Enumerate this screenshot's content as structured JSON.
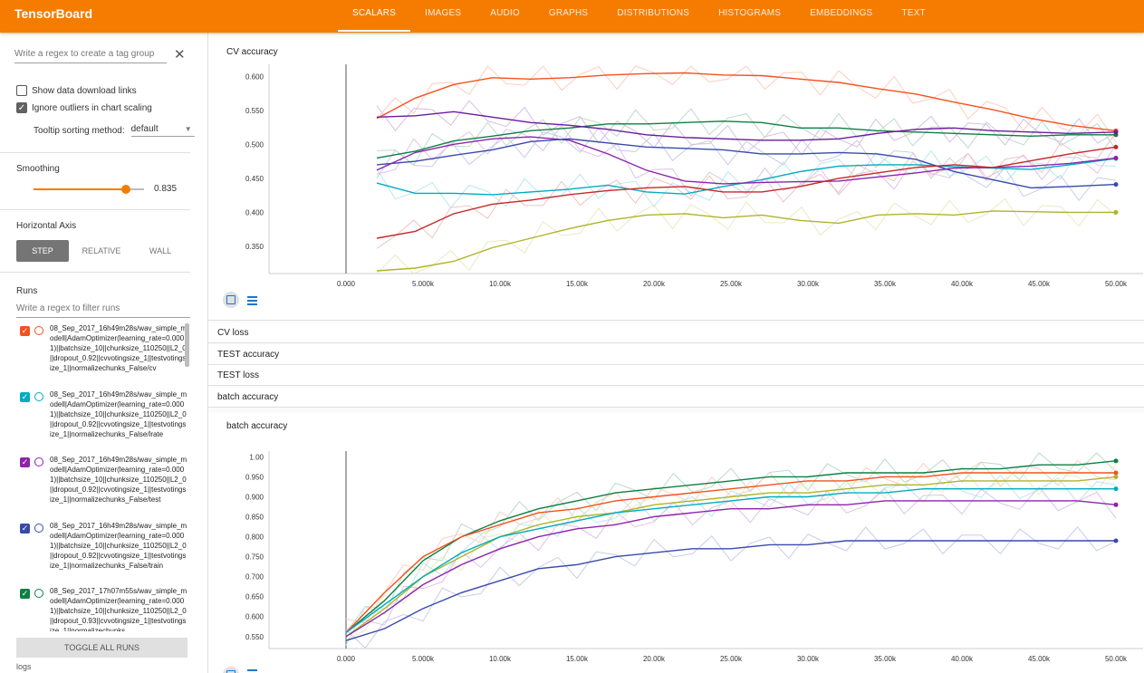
{
  "app": {
    "title": "TensorBoard"
  },
  "tabs": [
    "SCALARS",
    "IMAGES",
    "AUDIO",
    "GRAPHS",
    "DISTRIBUTIONS",
    "HISTOGRAMS",
    "EMBEDDINGS",
    "TEXT"
  ],
  "active_tab": "SCALARS",
  "sidebar": {
    "tag_group_placeholder": "Write a regex to create a tag group",
    "show_download_label": "Show data download links",
    "show_download_checked": false,
    "ignore_outliers_label": "Ignore outliers in chart scaling",
    "ignore_outliers_checked": true,
    "tooltip_label": "Tooltip sorting method:",
    "tooltip_value": "default",
    "smoothing_title": "Smoothing",
    "smoothing_value": "0.835",
    "smoothing_level": 0.835,
    "axis_title": "Horizontal Axis",
    "axis_options": [
      "STEP",
      "RELATIVE",
      "WALL"
    ],
    "axis_active": "STEP",
    "runs_title": "Runs",
    "runs_filter_placeholder": "Write a regex to filter runs",
    "runs": [
      {
        "text": "08_Sep_2017_16h49m28s/wav_simple_modell|AdamOptimizer(learning_rate=0.0001)||batchsize_10||chunksize_110250||L2_0||dropout_0.92||cvvotingsize_1||testvotingsize_1||normalizechunks_False/cv",
        "color": "#f4511e",
        "checked": true
      },
      {
        "text": "08_Sep_2017_16h49m28s/wav_simple_modell|AdamOptimizer(learning_rate=0.0001)||batchsize_10||chunksize_110250||L2_0||dropout_0.92||cvvotingsize_1||testvotingsize_1||normalizechunks_False/lrate",
        "color": "#00acc1",
        "checked": true
      },
      {
        "text": "08_Sep_2017_16h49m28s/wav_simple_modell|AdamOptimizer(learning_rate=0.0001)||batchsize_10||chunksize_110250||L2_0||dropout_0.92||cvvotingsize_1||testvotingsize_1||normalizechunks_False/test",
        "color": "#8e24aa",
        "checked": true
      },
      {
        "text": "08_Sep_2017_16h49m28s/wav_simple_modell|AdamOptimizer(learning_rate=0.0001)||batchsize_10||chunksize_110250||L2_0||dropout_0.92||cvvotingsize_1||testvotingsize_1||normalizechunks_False/train",
        "color": "#3949ab",
        "checked": true
      },
      {
        "text": "08_Sep_2017_17h07m55s/wav_simple_modell|AdamOptimizer(learning_rate=0.0001)||batchsize_10||chunksize_110250||L2_0||dropout_0.93||cvvotingsize_1||testvotingsize_1||normalizechunks",
        "color": "#0b8043",
        "checked": true
      }
    ],
    "toggle_all_label": "TOGGLE ALL RUNS",
    "logs_label": "logs"
  },
  "cards": {
    "cv_accuracy_title": "CV accuracy",
    "collapsed": [
      "CV loss",
      "TEST accuracy",
      "TEST loss",
      "batch accuracy"
    ],
    "batch_accuracy_title": "batch accuracy"
  },
  "icons": {
    "fit_domain": "fit-domain-icon",
    "toggle_log": "lines-icon",
    "close": "close-icon"
  },
  "chart_data": [
    {
      "type": "line",
      "title": "CV accuracy",
      "x_ticks": [
        "0.000",
        "5.000k",
        "10.00k",
        "15.00k",
        "20.00k",
        "25.00k",
        "30.00k",
        "35.00k",
        "40.00k",
        "45.00k",
        "50.00k"
      ],
      "y_ticks": [
        "0.350",
        "0.400",
        "0.450",
        "0.500",
        "0.550",
        "0.600"
      ],
      "xlim": [
        0,
        50000
      ],
      "ylim": [
        0.31,
        0.615
      ],
      "x": [
        2000,
        4500,
        7000,
        9500,
        12000,
        14500,
        17000,
        19500,
        22000,
        24500,
        27000,
        29500,
        32000,
        34500,
        37000,
        39500,
        42000,
        44500,
        47000,
        50000
      ],
      "series": [
        {
          "color": "#f4511e",
          "values": [
            0.538,
            0.568,
            0.588,
            0.598,
            0.596,
            0.598,
            0.602,
            0.604,
            0.605,
            0.602,
            0.601,
            0.596,
            0.591,
            0.582,
            0.574,
            0.562,
            0.551,
            0.538,
            0.528,
            0.52
          ]
        },
        {
          "color": "#00acc1",
          "values": [
            0.443,
            0.428,
            0.428,
            0.426,
            0.43,
            0.434,
            0.44,
            0.43,
            0.427,
            0.438,
            0.448,
            0.46,
            0.468,
            0.47,
            0.47,
            0.467,
            0.465,
            0.463,
            0.47,
            0.479
          ]
        },
        {
          "color": "#8e24aa",
          "values": [
            0.462,
            0.488,
            0.5,
            0.508,
            0.511,
            0.506,
            0.486,
            0.462,
            0.446,
            0.442,
            0.444,
            0.445,
            0.446,
            0.452,
            0.458,
            0.465,
            0.466,
            0.468,
            0.472,
            0.48
          ]
        },
        {
          "color": "#3949ab",
          "values": [
            0.47,
            0.475,
            0.484,
            0.492,
            0.504,
            0.508,
            0.502,
            0.496,
            0.494,
            0.492,
            0.486,
            0.486,
            0.488,
            0.486,
            0.478,
            0.46,
            0.448,
            0.436,
            0.438,
            0.441
          ]
        },
        {
          "color": "#0b8043",
          "values": [
            0.48,
            0.49,
            0.505,
            0.512,
            0.52,
            0.524,
            0.53,
            0.53,
            0.532,
            0.534,
            0.532,
            0.524,
            0.524,
            0.52,
            0.518,
            0.516,
            0.514,
            0.512,
            0.514,
            0.514
          ]
        },
        {
          "color": "#6a1b9a",
          "values": [
            0.54,
            0.542,
            0.548,
            0.54,
            0.532,
            0.528,
            0.522,
            0.514,
            0.51,
            0.508,
            0.506,
            0.506,
            0.508,
            0.516,
            0.522,
            0.524,
            0.52,
            0.518,
            0.516,
            0.518
          ]
        },
        {
          "color": "#c62828",
          "values": [
            0.362,
            0.372,
            0.398,
            0.412,
            0.418,
            0.426,
            0.432,
            0.436,
            0.438,
            0.43,
            0.43,
            0.438,
            0.45,
            0.458,
            0.466,
            0.47,
            0.466,
            0.476,
            0.486,
            0.496
          ]
        },
        {
          "color": "#afb42b",
          "values": [
            0.314,
            0.318,
            0.328,
            0.348,
            0.362,
            0.376,
            0.388,
            0.396,
            0.398,
            0.392,
            0.396,
            0.388,
            0.384,
            0.396,
            0.398,
            0.396,
            0.402,
            0.401,
            0.4,
            0.4
          ]
        }
      ]
    },
    {
      "type": "line",
      "title": "batch accuracy",
      "x_ticks": [
        "0.000",
        "5.000k",
        "10.00k",
        "15.00k",
        "20.00k",
        "25.00k",
        "30.00k",
        "35.00k",
        "40.00k",
        "45.00k",
        "50.00k"
      ],
      "y_ticks": [
        "0.550",
        "0.600",
        "0.650",
        "0.700",
        "0.750",
        "0.800",
        "0.850",
        "0.900",
        "0.950",
        "1.00"
      ],
      "xlim": [
        0,
        50000
      ],
      "ylim": [
        0.52,
        1.01
      ],
      "x": [
        0,
        2500,
        5000,
        7500,
        10000,
        12500,
        15000,
        17500,
        20000,
        22500,
        25000,
        27500,
        30000,
        32500,
        35000,
        37500,
        40000,
        42500,
        45000,
        47500,
        50000
      ],
      "series": [
        {
          "color": "#0b8043",
          "values": [
            0.56,
            0.64,
            0.74,
            0.8,
            0.84,
            0.87,
            0.89,
            0.91,
            0.92,
            0.93,
            0.94,
            0.95,
            0.95,
            0.96,
            0.96,
            0.96,
            0.97,
            0.97,
            0.98,
            0.98,
            0.99
          ]
        },
        {
          "color": "#f4511e",
          "values": [
            0.56,
            0.66,
            0.75,
            0.8,
            0.83,
            0.86,
            0.87,
            0.89,
            0.9,
            0.91,
            0.92,
            0.93,
            0.94,
            0.94,
            0.95,
            0.95,
            0.96,
            0.96,
            0.96,
            0.96,
            0.96
          ]
        },
        {
          "color": "#afb42b",
          "values": [
            0.55,
            0.62,
            0.7,
            0.75,
            0.8,
            0.83,
            0.85,
            0.86,
            0.88,
            0.89,
            0.9,
            0.91,
            0.91,
            0.92,
            0.93,
            0.93,
            0.94,
            0.94,
            0.94,
            0.94,
            0.95
          ]
        },
        {
          "color": "#00acc1",
          "values": [
            0.56,
            0.63,
            0.7,
            0.76,
            0.8,
            0.82,
            0.84,
            0.86,
            0.87,
            0.88,
            0.89,
            0.9,
            0.9,
            0.91,
            0.91,
            0.92,
            0.92,
            0.92,
            0.92,
            0.92,
            0.92
          ]
        },
        {
          "color": "#8e24aa",
          "values": [
            0.55,
            0.61,
            0.68,
            0.73,
            0.77,
            0.8,
            0.82,
            0.83,
            0.85,
            0.86,
            0.87,
            0.87,
            0.88,
            0.88,
            0.89,
            0.89,
            0.89,
            0.89,
            0.89,
            0.89,
            0.88
          ]
        },
        {
          "color": "#3949ab",
          "values": [
            0.54,
            0.57,
            0.62,
            0.66,
            0.69,
            0.72,
            0.73,
            0.75,
            0.76,
            0.77,
            0.77,
            0.78,
            0.78,
            0.79,
            0.79,
            0.79,
            0.79,
            0.79,
            0.79,
            0.79,
            0.79
          ]
        }
      ]
    }
  ]
}
